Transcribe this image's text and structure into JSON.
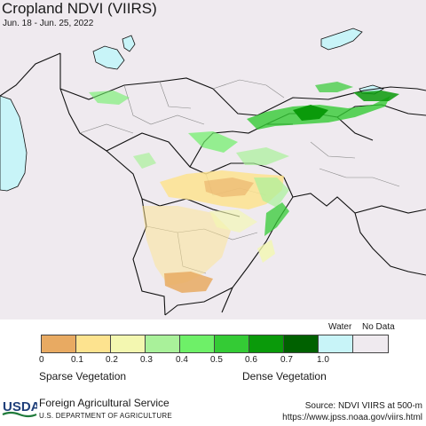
{
  "map": {
    "title": "Cropland NDVI (VIIRS)",
    "date_range": "Jun. 18 - Jun. 25, 2022",
    "land_color": "#efeaef",
    "water_color": "#c8f4f8",
    "border_color": "#111111"
  },
  "legend": {
    "water_label": "Water",
    "nodata_label": "No Data",
    "colors": [
      "#e8aa62",
      "#fde38f",
      "#f3f7b0",
      "#a9f19a",
      "#6ef068",
      "#34cb35",
      "#0a9a0a",
      "#006100",
      "#c8f4f8",
      "#efeaef"
    ],
    "ticks": [
      "0",
      "0.1",
      "0.2",
      "0.3",
      "0.4",
      "0.5",
      "0.6",
      "0.7",
      "1.0"
    ],
    "sparse_label": "Sparse Vegetation",
    "dense_label": "Dense Vegetation"
  },
  "footer": {
    "logo_text": "USDA",
    "agency": "Foreign Agricultural Service",
    "department": "U.S. DEPARTMENT OF AGRICULTURE",
    "source": "Source: NDVI VIIRS at 500-m",
    "url": "https://www.jpss.noaa.gov/viirs.html"
  }
}
